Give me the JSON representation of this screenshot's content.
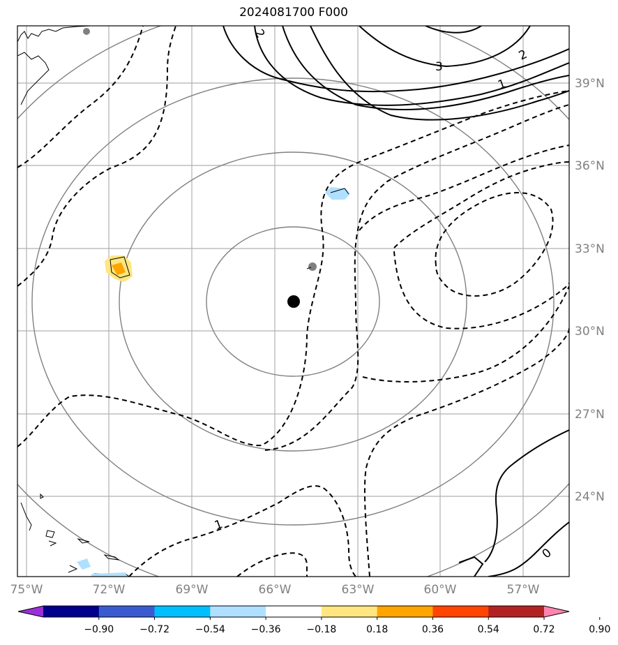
{
  "title": "2024081700 F000",
  "map": {
    "lat_labels": [
      "39°N",
      "36°N",
      "33°N",
      "30°N",
      "27°N",
      "24°N"
    ],
    "lon_labels": [
      "75°W",
      "72°W",
      "69°W",
      "66°W",
      "63°W",
      "60°W",
      "57°W"
    ],
    "contour_labels": [
      "2",
      "3",
      "2",
      "1",
      "1",
      "0"
    ],
    "storm_center": {
      "lon": -65.5,
      "lat": 31.1
    },
    "grid_color": "#b0b0b0",
    "range_ring_color": "#808080"
  },
  "colorbar": {
    "tick_labels": [
      "−0.90",
      "−0.72",
      "−0.54",
      "−0.36",
      "−0.18",
      "0.18",
      "0.36",
      "0.54",
      "0.72",
      "0.90"
    ],
    "colors": [
      "#9b30d8",
      "#00008b",
      "#3a5bd0",
      "#00bfff",
      "#b0e0ff",
      "#ffffff",
      "#ffe680",
      "#ffa500",
      "#ff4500",
      "#b22222",
      "#ff85b0"
    ]
  }
}
